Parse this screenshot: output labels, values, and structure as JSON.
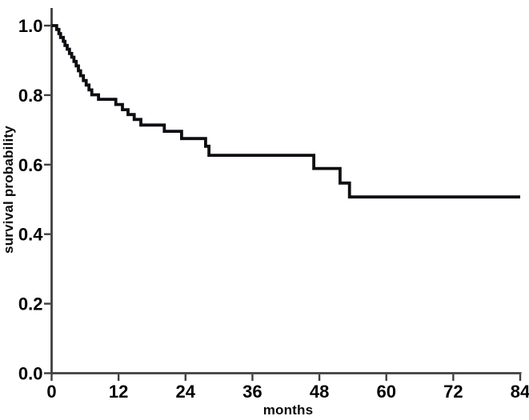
{
  "figure": {
    "background": "#ffffff",
    "kind": "kaplan-meier-survival-plot"
  },
  "chart_data": {
    "type": "line",
    "subtype": "step-post-kaplan-meier",
    "title": "",
    "xlabel": "months",
    "ylabel": "survival probability",
    "xlim": [
      0,
      84
    ],
    "ylim": [
      0.0,
      1.0
    ],
    "grid": false,
    "legend": "none",
    "axis_color": "#3f3f3f",
    "text_color": "#000000",
    "xticks": [
      {
        "value": 0,
        "label": "0"
      },
      {
        "value": 12,
        "label": "12"
      },
      {
        "value": 24,
        "label": "24"
      },
      {
        "value": 36,
        "label": "36"
      },
      {
        "value": 48,
        "label": "48"
      },
      {
        "value": 60,
        "label": "60"
      },
      {
        "value": 72,
        "label": "72"
      },
      {
        "value": 84,
        "label": "84"
      }
    ],
    "yticks": [
      {
        "value": 0.0,
        "label": "0.0"
      },
      {
        "value": 0.2,
        "label": "0.2"
      },
      {
        "value": 0.4,
        "label": "0.4"
      },
      {
        "value": 0.6,
        "label": "0.6"
      },
      {
        "value": 0.8,
        "label": "0.8"
      },
      {
        "value": 1.0,
        "label": "1.0"
      }
    ],
    "series": [
      {
        "color": "#0d0d12",
        "step": "post",
        "points": [
          [
            0.0,
            1.0
          ],
          [
            0.9,
            0.989
          ],
          [
            1.3,
            0.977
          ],
          [
            1.6,
            0.966
          ],
          [
            2.1,
            0.955
          ],
          [
            2.4,
            0.943
          ],
          [
            2.8,
            0.932
          ],
          [
            3.2,
            0.92
          ],
          [
            3.6,
            0.909
          ],
          [
            4.0,
            0.897
          ],
          [
            4.4,
            0.884
          ],
          [
            4.8,
            0.87
          ],
          [
            5.2,
            0.856
          ],
          [
            5.7,
            0.842
          ],
          [
            6.2,
            0.829
          ],
          [
            6.7,
            0.815
          ],
          [
            7.2,
            0.801
          ],
          [
            8.4,
            0.788
          ],
          [
            11.5,
            0.773
          ],
          [
            12.7,
            0.758
          ],
          [
            13.7,
            0.744
          ],
          [
            14.8,
            0.73
          ],
          [
            16.0,
            0.714
          ],
          [
            20.2,
            0.696
          ],
          [
            23.3,
            0.675
          ],
          [
            27.6,
            0.653
          ],
          [
            28.2,
            0.627
          ],
          [
            47.0,
            0.589
          ],
          [
            51.7,
            0.547
          ],
          [
            53.4,
            0.507
          ],
          [
            84.0,
            0.507
          ]
        ]
      }
    ]
  }
}
